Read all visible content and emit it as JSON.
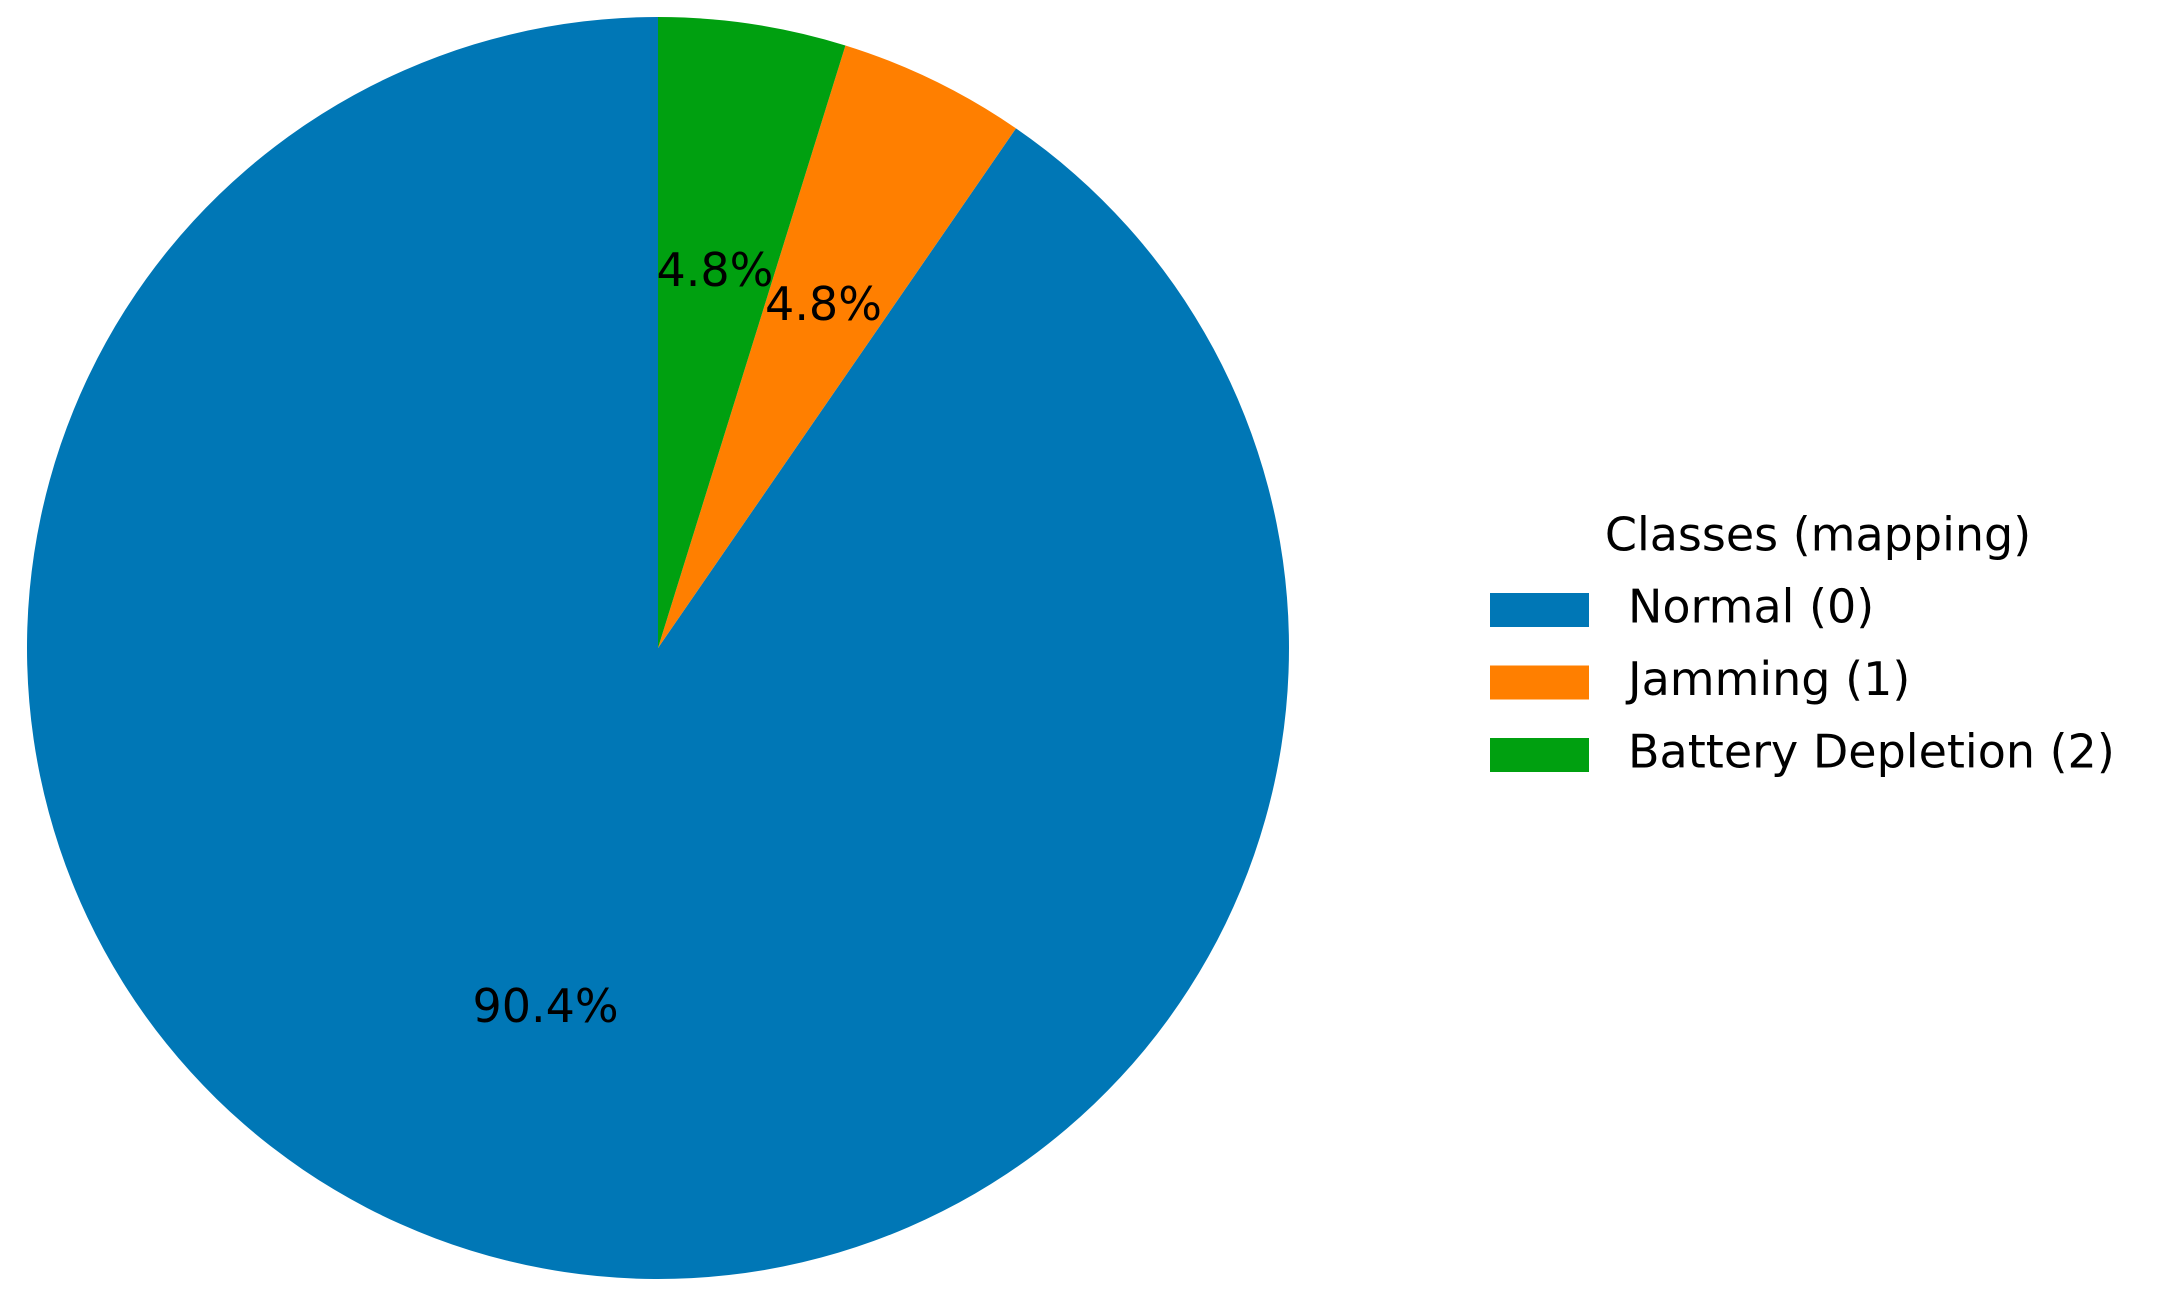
{
  "chart_data": {
    "type": "pie",
    "categories": [
      "Normal (0)",
      "Jamming (1)",
      "Battery Depletion (2)"
    ],
    "values": [
      90.4,
      4.8,
      4.8
    ],
    "value_labels": [
      "90.4%",
      "4.8%",
      "4.8%"
    ],
    "colors": [
      "#0077b6",
      "#ff7f00",
      "#00a010"
    ],
    "legend_title": "Classes (mapping)",
    "legend": "right"
  }
}
